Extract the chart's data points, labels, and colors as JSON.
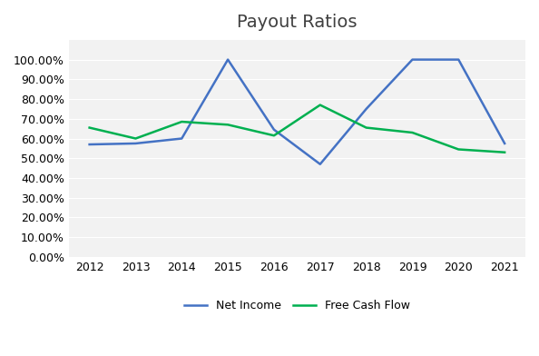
{
  "title": "Payout Ratios",
  "years": [
    2012,
    2013,
    2014,
    2015,
    2016,
    2017,
    2018,
    2019,
    2020,
    2021
  ],
  "net_income": [
    0.57,
    0.575,
    0.6,
    1.0,
    0.645,
    0.47,
    0.75,
    1.0,
    1.0,
    0.575
  ],
  "free_cash_flow": [
    0.655,
    0.6,
    0.685,
    0.67,
    0.615,
    0.77,
    0.655,
    0.63,
    0.545,
    0.53
  ],
  "net_income_color": "#4472C4",
  "free_cash_flow_color": "#00B050",
  "background_color": "#ffffff",
  "plot_bg_color": "#f2f2f2",
  "grid_color": "#ffffff",
  "ylim": [
    0.0,
    1.1
  ],
  "yticks": [
    0.0,
    0.1,
    0.2,
    0.3,
    0.4,
    0.5,
    0.6,
    0.7,
    0.8,
    0.9,
    1.0
  ],
  "legend_labels": [
    "Net Income",
    "Free Cash Flow"
  ],
  "title_fontsize": 14,
  "tick_fontsize": 9,
  "legend_fontsize": 9,
  "line_width": 1.8
}
